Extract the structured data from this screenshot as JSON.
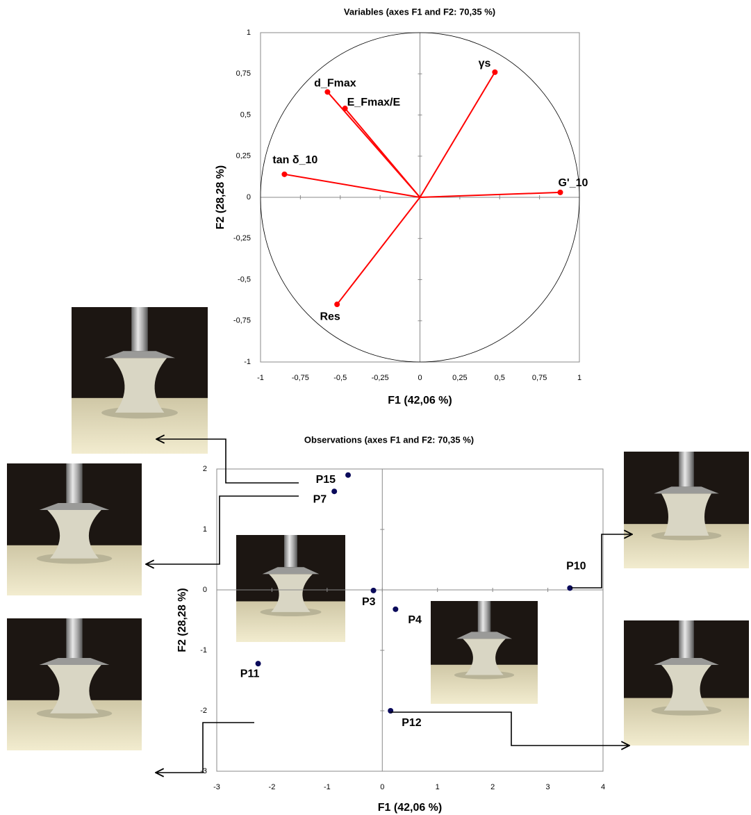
{
  "chart_data": [
    {
      "type": "vector",
      "title": "Variables (axes F1 and F2: 70,35 %)",
      "xlabel": "F1 (42,06 %)",
      "ylabel": "F2 (28,28 %)",
      "labels": [
        "γs",
        "d_Fmax",
        "E_Fmax/E",
        "tan δ_10",
        "G'_10",
        "Res"
      ],
      "x": [
        0.47,
        -0.58,
        -0.47,
        -0.85,
        0.88,
        -0.52
      ],
      "values": [
        0.76,
        0.64,
        0.54,
        0.14,
        0.03,
        -0.65
      ],
      "color": "#ff0000",
      "xlim": [
        -1,
        1
      ],
      "ylim": [
        -1,
        1
      ],
      "xticks": [
        -1,
        {
          "value": -0.75,
          "label": "-0,75"
        },
        {
          "value": -0.5,
          "label": "-0,5"
        },
        {
          "value": -0.25,
          "label": "-0,25"
        },
        0,
        {
          "value": 0.25,
          "label": "0,25"
        },
        {
          "value": 0.5,
          "label": "0,5"
        },
        {
          "value": 0.75,
          "label": "0,75"
        },
        1
      ],
      "yticks": [
        -1,
        {
          "value": -0.75,
          "label": "-0,75"
        },
        {
          "value": -0.5,
          "label": "-0,5"
        },
        {
          "value": -0.25,
          "label": "-0,25"
        },
        0,
        {
          "value": 0.25,
          "label": "0,25"
        },
        {
          "value": 0.5,
          "label": "0,5"
        },
        {
          "value": 0.75,
          "label": "0,75"
        },
        1
      ]
    },
    {
      "type": "scatter",
      "title": "Observations (axes F1 and F2: 70,35 %)",
      "xlabel": "F1 (42,06 %)",
      "ylabel": "F2 (28,28 %)",
      "labels": [
        "P15",
        "P7",
        "P3",
        "P4",
        "P10",
        "P11",
        "P12"
      ],
      "x": [
        -0.62,
        -0.87,
        -0.16,
        0.24,
        3.4,
        -2.25,
        0.15
      ],
      "values": [
        1.9,
        1.63,
        -0.01,
        -0.32,
        0.03,
        -1.22,
        -2.0
      ],
      "color": "#0a0a5a",
      "xlim": [
        -3,
        4
      ],
      "ylim": [
        -3,
        2
      ],
      "xticks": [
        -3,
        -2,
        -1,
        0,
        1,
        2,
        3,
        4
      ],
      "yticks": [
        -3,
        -2,
        -1,
        0,
        1,
        2
      ]
    }
  ]
}
